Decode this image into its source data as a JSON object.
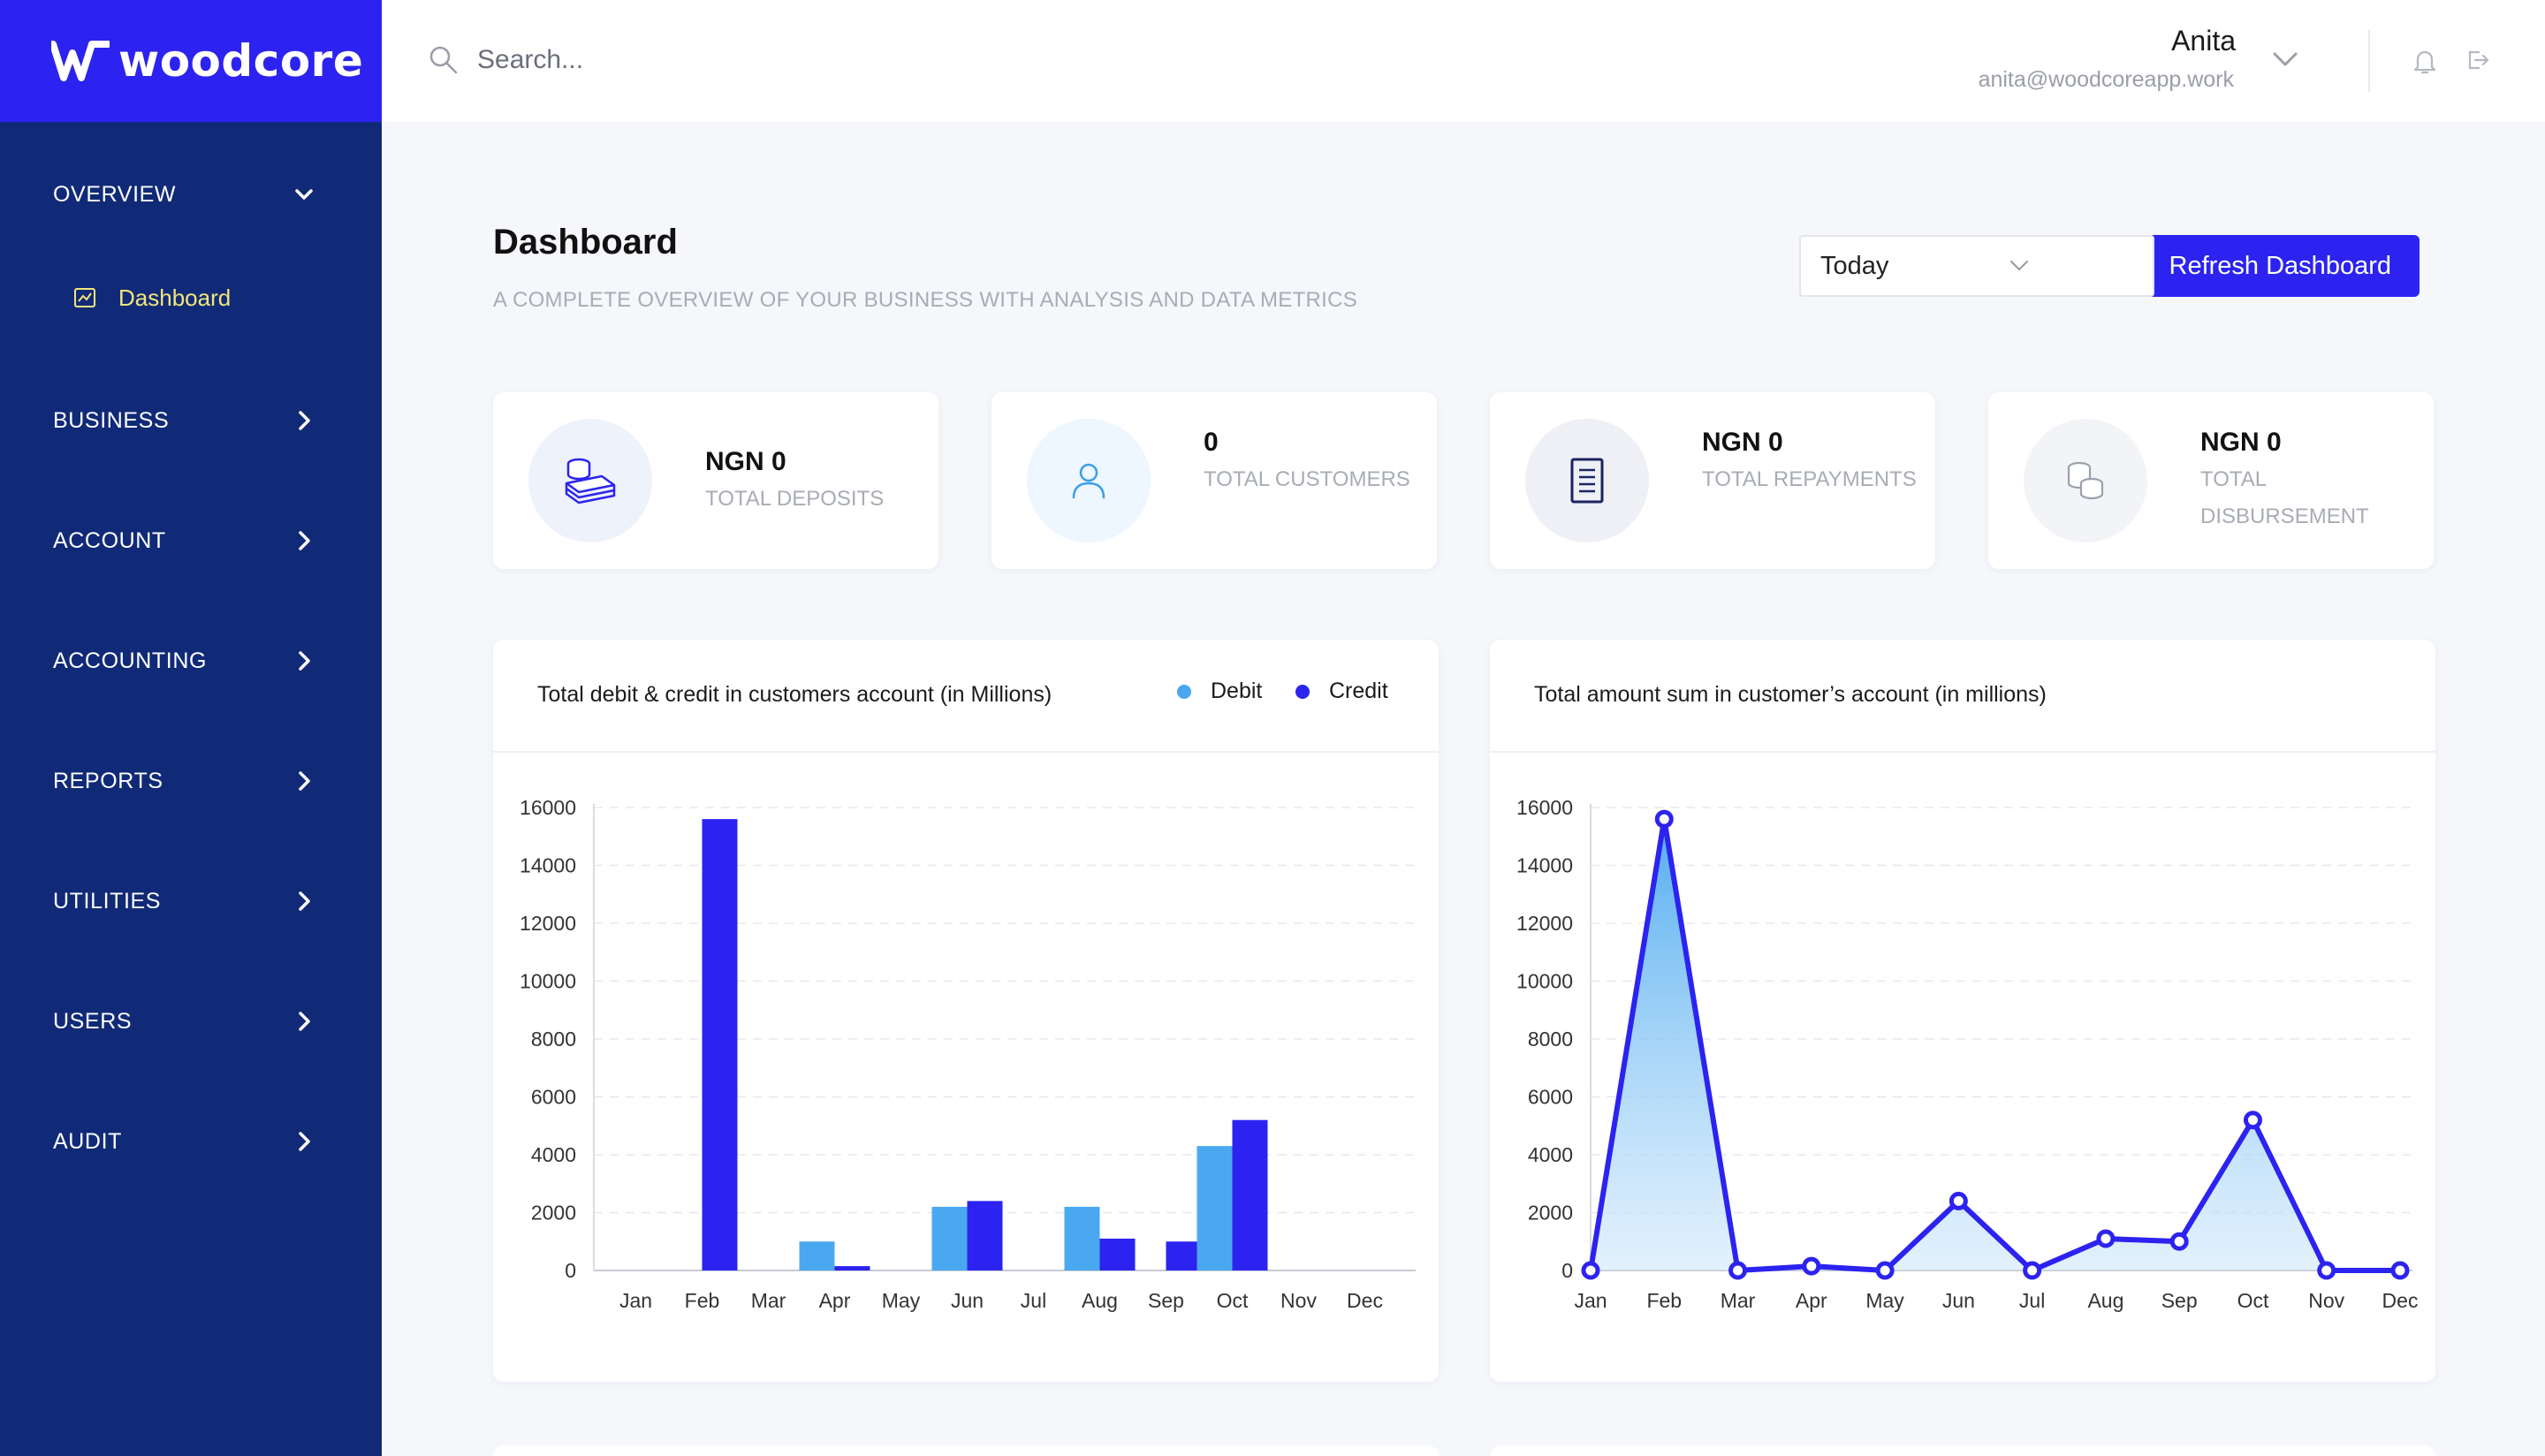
{
  "brand": {
    "name": "woodcore",
    "colors": {
      "primary": "#2c23f0",
      "sidebar": "#112a78",
      "active": "#f2e57a",
      "debit": "#4aa8f0",
      "credit": "#2c23f0"
    }
  },
  "sidebar": {
    "overview": {
      "label": "OVERVIEW",
      "icon": "chevron-down-icon"
    },
    "dashboard": {
      "label": "Dashboard",
      "icon": "chart-icon"
    },
    "items": [
      {
        "label": "BUSINESS",
        "icon": "chevron-right-icon"
      },
      {
        "label": "ACCOUNT",
        "icon": "chevron-right-icon"
      },
      {
        "label": "ACCOUNTING",
        "icon": "chevron-right-icon"
      },
      {
        "label": "REPORTS",
        "icon": "chevron-right-icon"
      },
      {
        "label": "UTILITIES",
        "icon": "chevron-right-icon"
      },
      {
        "label": "USERS",
        "icon": "chevron-right-icon"
      },
      {
        "label": "AUDIT",
        "icon": "chevron-right-icon"
      }
    ]
  },
  "topbar": {
    "search_placeholder": "Search...",
    "user": {
      "name": "Anita",
      "email": "anita@woodcoreapp.work"
    }
  },
  "page": {
    "title": "Dashboard",
    "subtitle": "A COMPLETE OVERVIEW OF YOUR BUSINESS WITH ANALYSIS AND DATA METRICS",
    "period": "Today",
    "refresh_label": "Refresh Dashboard"
  },
  "cards": [
    {
      "value": "NGN 0",
      "label": "TOTAL DEPOSITS",
      "icon": "money-stack-icon"
    },
    {
      "value": "0",
      "label": "TOTAL CUSTOMERS",
      "icon": "user-icon"
    },
    {
      "value": "NGN 0",
      "label": "TOTAL REPAYMENTS",
      "icon": "document-icon"
    },
    {
      "value": "NGN 0",
      "label": "TOTAL DISBURSEMENT",
      "icon": "coins-icon"
    }
  ],
  "chart_data": [
    {
      "type": "bar",
      "title": "Total debit & credit in customers account (in Millions)",
      "categories": [
        "Jan",
        "Feb",
        "Mar",
        "Apr",
        "May",
        "Jun",
        "Jul",
        "Aug",
        "Sep",
        "Oct",
        "Nov",
        "Dec"
      ],
      "series": [
        {
          "name": "Debit",
          "values": [
            0,
            0,
            0,
            1000,
            0,
            2200,
            0,
            2200,
            0,
            4300,
            0,
            0
          ]
        },
        {
          "name": "Credit",
          "values": [
            0,
            15600,
            0,
            150,
            0,
            2400,
            0,
            1100,
            1000,
            5200,
            0,
            0
          ]
        }
      ],
      "ylim": [
        0,
        16000
      ],
      "yticks": [
        0,
        2000,
        4000,
        6000,
        8000,
        10000,
        12000,
        14000,
        16000
      ],
      "grid": true,
      "legend": "top-right"
    },
    {
      "type": "area",
      "title": "Total amount sum in customer’s account (in millions)",
      "categories": [
        "Jan",
        "Feb",
        "Mar",
        "Apr",
        "May",
        "Jun",
        "Jul",
        "Aug",
        "Sep",
        "Oct",
        "Nov",
        "Dec"
      ],
      "series": [
        {
          "values": [
            0,
            15600,
            0,
            150,
            0,
            2400,
            0,
            1100,
            1000,
            5200,
            0,
            0
          ]
        }
      ],
      "ylim": [
        0,
        16000
      ],
      "yticks": [
        0,
        2000,
        4000,
        6000,
        8000,
        10000,
        12000,
        14000,
        16000
      ],
      "grid": true
    }
  ]
}
